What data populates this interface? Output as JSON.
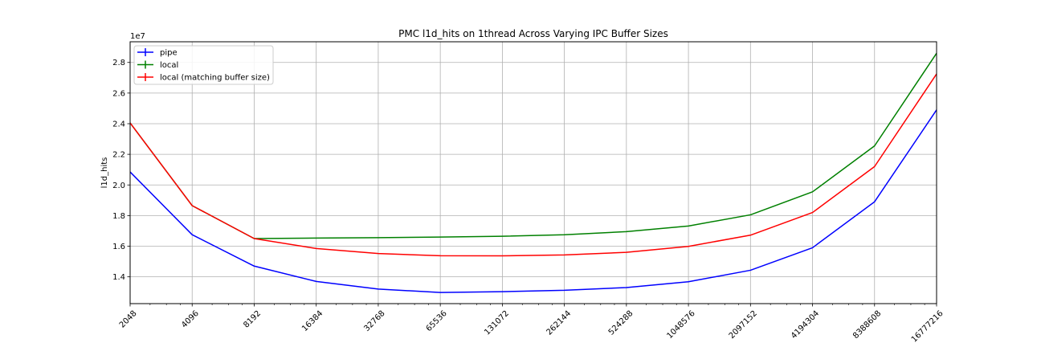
{
  "chart_data": {
    "type": "line",
    "title": "PMC l1d_hits on 1thread Across Varying IPC Buffer Sizes",
    "xlabel": "",
    "ylabel": "l1d_hits",
    "y_offset_label": "1e7",
    "x_scale": "log2",
    "x": [
      2048,
      4096,
      8192,
      16384,
      32768,
      65536,
      131072,
      262144,
      524288,
      1048576,
      2097152,
      4194304,
      8388608,
      16777216
    ],
    "x_tick_labels": [
      "2048",
      "4096",
      "8192",
      "16384",
      "32768",
      "65536",
      "131072",
      "262144",
      "524288",
      "1048576",
      "2097152",
      "4194304",
      "8388608",
      "16777216"
    ],
    "y_ticks": [
      14000000,
      16000000,
      18000000,
      20000000,
      22000000,
      24000000,
      26000000,
      28000000
    ],
    "y_tick_labels": [
      "1.4",
      "1.6",
      "1.8",
      "2.0",
      "2.2",
      "2.4",
      "2.6",
      "2.8"
    ],
    "ylim": [
      12250000,
      29350000
    ],
    "grid": true,
    "legend_position": "top-left",
    "series": [
      {
        "name": "pipe",
        "color": "#0000ff",
        "values": [
          20850000,
          16750000,
          14700000,
          13700000,
          13200000,
          12980000,
          13030000,
          13120000,
          13300000,
          13680000,
          14430000,
          15900000,
          18900000,
          24900000
        ]
      },
      {
        "name": "local",
        "color": "#008000",
        "values": [
          24050000,
          18650000,
          16500000,
          16530000,
          16560000,
          16600000,
          16650000,
          16750000,
          16950000,
          17320000,
          18050000,
          19550000,
          22550000,
          28600000
        ]
      },
      {
        "name": "local (matching buffer size)",
        "color": "#ff0000",
        "values": [
          24050000,
          18650000,
          16500000,
          15850000,
          15520000,
          15380000,
          15370000,
          15430000,
          15600000,
          15990000,
          16720000,
          18200000,
          21200000,
          27250000
        ]
      }
    ]
  }
}
